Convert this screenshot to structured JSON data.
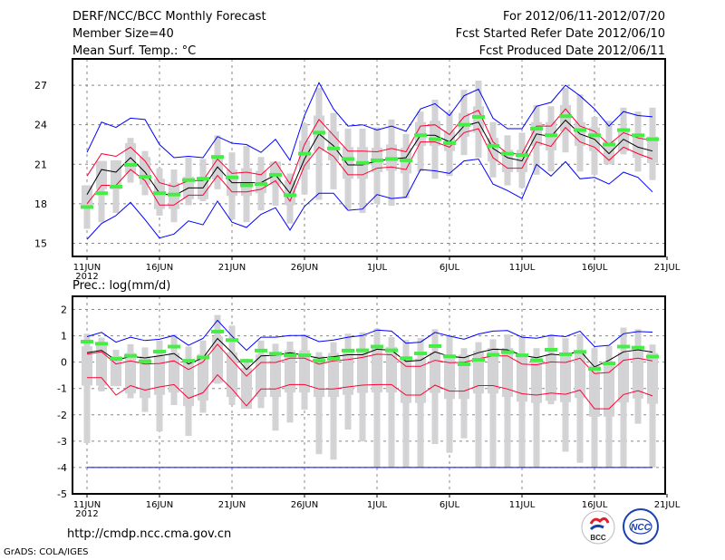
{
  "header": {
    "title": "DERF/NCC/BCC Monthly Forecast",
    "member_size": "Member Size=40",
    "variable": "Mean Surf. Temp.: °C",
    "period": "For 2012/06/11-2012/07/20",
    "started": "Fcst Started Refer Date 2012/06/10",
    "produced": "Fcst Produced Date 2012/06/11"
  },
  "footer": {
    "url": "http://cmdp.ncc.cma.gov.cn",
    "credit": "GrADS: COLA/IGES",
    "logo_bcc": "BCC",
    "logo_ncc": "NCC"
  },
  "colors": {
    "max_min": "#0000ff",
    "spread": "#ff0033",
    "mean": "#000000",
    "obs": "#44ee44",
    "range": "#d3d3d6"
  },
  "chart_data": [
    {
      "type": "line",
      "title": "Mean Surf. Temp.: °C",
      "xlabel": "",
      "ylabel": "°C",
      "x_ticks": [
        "11JUN",
        "16JUN",
        "21JUN",
        "26JUN",
        "1JUL",
        "6JUL",
        "11JUL",
        "16JUL",
        "21JUL"
      ],
      "x_year": "2012",
      "y_ticks": [
        15,
        18,
        21,
        24,
        27
      ],
      "ylim": [
        14,
        29
      ],
      "grid": true,
      "days": 40,
      "series": [
        {
          "name": "max",
          "color": "#0000ff",
          "values": [
            21.9,
            24.2,
            23.8,
            24.5,
            24.4,
            22.5,
            21.5,
            21.6,
            21.5,
            23.1,
            22.6,
            22.5,
            21.9,
            22.9,
            21.3,
            24.7,
            27.2,
            25.2,
            23.9,
            24.0,
            23.6,
            23.9,
            23.5,
            25.2,
            25.6,
            24.7,
            26.2,
            26.7,
            24.5,
            23.7,
            23.7,
            25.4,
            25.7,
            27.0,
            26.2,
            25.2,
            23.9,
            25.0,
            24.7,
            24.6
          ]
        },
        {
          "name": "upper",
          "color": "#ff0033",
          "values": [
            20.1,
            21.8,
            21.6,
            22.3,
            21.25,
            19.6,
            19.3,
            19.75,
            19.75,
            21.4,
            20.3,
            20.4,
            20.2,
            21.2,
            19.5,
            22.5,
            24.4,
            23.2,
            22.0,
            22.0,
            21.95,
            22.2,
            21.95,
            23.9,
            24.0,
            23.25,
            24.6,
            25.1,
            22.7,
            21.8,
            21.8,
            23.9,
            23.9,
            25.2,
            23.9,
            23.5,
            22.5,
            23.4,
            23.0,
            22.8
          ]
        },
        {
          "name": "mean",
          "color": "#000000",
          "values": [
            18.7,
            20.6,
            20.4,
            21.5,
            20.4,
            18.8,
            18.6,
            19.2,
            19.2,
            20.8,
            19.6,
            19.6,
            19.6,
            20.2,
            18.8,
            21.4,
            23.3,
            22.4,
            20.95,
            20.95,
            21.25,
            21.4,
            21.5,
            23.2,
            23.2,
            22.7,
            23.9,
            24.2,
            22.2,
            21.5,
            21.25,
            23.3,
            23.1,
            24.35,
            23.3,
            22.9,
            21.8,
            22.9,
            22.3,
            22.0
          ]
        },
        {
          "name": "lower",
          "color": "#ff0033",
          "values": [
            18.0,
            19.4,
            19.4,
            20.6,
            19.75,
            17.9,
            17.9,
            18.65,
            18.65,
            20.15,
            18.9,
            18.9,
            19.1,
            19.75,
            18.2,
            20.9,
            22.3,
            21.6,
            20.2,
            20.2,
            20.7,
            20.8,
            20.6,
            22.7,
            22.7,
            22.3,
            23.4,
            23.7,
            21.5,
            20.7,
            20.7,
            22.7,
            22.35,
            23.8,
            22.7,
            22.3,
            21.3,
            22.3,
            21.8,
            21.4
          ]
        },
        {
          "name": "min",
          "color": "#0000ff",
          "values": [
            15.3,
            16.5,
            17.1,
            18.1,
            16.8,
            15.4,
            15.7,
            16.7,
            16.4,
            18.2,
            16.6,
            16.2,
            17.2,
            17.7,
            16.0,
            17.8,
            18.8,
            18.8,
            17.5,
            17.6,
            18.7,
            18.4,
            18.5,
            20.6,
            20.5,
            20.3,
            21.25,
            21.4,
            19.5,
            19.0,
            18.4,
            21.0,
            20.1,
            21.2,
            19.9,
            20.0,
            19.5,
            20.4,
            20.0,
            18.9
          ]
        }
      ],
      "markers": {
        "name": "green",
        "color": "#44ee44",
        "values": [
          17.75,
          18.8,
          19.3,
          20.95,
          20.05,
          18.8,
          18.7,
          19.8,
          19.9,
          21.55,
          20.0,
          19.4,
          19.5,
          20.2,
          18.65,
          21.8,
          23.4,
          22.2,
          21.4,
          21.1,
          21.3,
          21.4,
          21.3,
          23.2,
          22.9,
          22.6,
          24.0,
          24.6,
          22.4,
          21.8,
          21.7,
          23.7,
          23.2,
          24.65,
          23.6,
          23.2,
          22.5,
          23.6,
          23.2,
          22.9
        ]
      },
      "ranges": {
        "high": [
          19.4,
          21.25,
          21.3,
          23.0,
          22.0,
          20.7,
          20.6,
          21.5,
          21.4,
          23.2,
          21.9,
          22.4,
          21.55,
          21.2,
          20.3,
          24.1,
          26.8,
          24.9,
          23.7,
          23.7,
          23.8,
          24.4,
          23.3,
          25.0,
          25.9,
          25.0,
          26.65,
          27.35,
          24.2,
          23.2,
          23.4,
          25.5,
          25.4,
          26.8,
          26.3,
          24.6,
          24.3,
          25.3,
          25.0,
          25.3
        ],
        "low": [
          16.1,
          16.6,
          17.3,
          19.6,
          18.65,
          17.1,
          16.6,
          17.9,
          18.2,
          19.1,
          16.8,
          16.6,
          17.5,
          17.85,
          16.5,
          18.7,
          18.3,
          19.1,
          17.6,
          17.3,
          18.0,
          17.85,
          18.4,
          20.45,
          19.9,
          20.1,
          21.7,
          21.5,
          20.0,
          19.4,
          19.2,
          20.2,
          20.45,
          21.9,
          20.45,
          20.2,
          21.0,
          21.75,
          20.45,
          19.8
        ]
      }
    },
    {
      "type": "line",
      "title": "Prec.: log(mm/d)",
      "xlabel": "",
      "ylabel": "log(mm/d)",
      "x_ticks": [
        "11JUN",
        "16JUN",
        "21JUN",
        "26JUN",
        "1JUL",
        "6JUL",
        "11JUL",
        "16JUL",
        "21JUL"
      ],
      "x_year": "2012",
      "y_ticks": [
        2,
        1,
        0,
        -1,
        -2,
        -3,
        -4,
        -5
      ],
      "ylim": [
        -5,
        2.5
      ],
      "grid": true,
      "days": 40,
      "series": [
        {
          "name": "max",
          "color": "#0000ff",
          "values": [
            0.97,
            1.13,
            0.76,
            0.95,
            0.82,
            0.87,
            1.01,
            0.64,
            0.9,
            1.59,
            0.99,
            0.45,
            0.95,
            0.95,
            1.01,
            1.01,
            0.78,
            0.84,
            0.95,
            1.01,
            1.22,
            1.18,
            0.72,
            0.76,
            1.13,
            0.99,
            0.87,
            1.07,
            1.18,
            1.2,
            0.95,
            0.91,
            1.02,
            0.97,
            1.18,
            0.59,
            0.64,
            1.08,
            1.16,
            1.14
          ]
        },
        {
          "name": "upper",
          "color": "#ff0033",
          "values": [
            0.3,
            0.39,
            -0.07,
            0.05,
            -0.07,
            -0.05,
            0.05,
            -0.28,
            0.01,
            0.68,
            0.07,
            -0.53,
            -0.01,
            -0.01,
            0.15,
            0.15,
            -0.08,
            0.05,
            0.1,
            0.18,
            0.3,
            0.28,
            -0.16,
            -0.16,
            0.07,
            -0.02,
            -0.01,
            0.13,
            0.24,
            0.24,
            -0.07,
            -0.1,
            0.01,
            -0.01,
            0.15,
            -0.43,
            -0.39,
            0.07,
            0.15,
            0.05
          ]
        },
        {
          "name": "mean",
          "color": "#000000",
          "values": [
            0.36,
            0.45,
            0.07,
            0.22,
            0.16,
            0.24,
            0.33,
            -0.07,
            0.16,
            0.9,
            0.36,
            -0.28,
            0.24,
            0.26,
            0.36,
            0.26,
            0.15,
            0.21,
            0.28,
            0.28,
            0.49,
            0.45,
            0.03,
            0.07,
            0.39,
            0.22,
            0.17,
            0.36,
            0.49,
            0.47,
            0.26,
            0.17,
            0.3,
            0.26,
            0.44,
            -0.18,
            0.07,
            0.39,
            0.47,
            0.38
          ]
        },
        {
          "name": "lower",
          "color": "#ff0033",
          "values": [
            -0.59,
            -0.59,
            -1.25,
            -0.89,
            -1.06,
            -0.94,
            -0.85,
            -1.37,
            -1.16,
            -0.48,
            -1.02,
            -1.66,
            -1.02,
            -1.02,
            -0.85,
            -0.85,
            -1.02,
            -1.02,
            -0.94,
            -0.87,
            -0.85,
            -0.85,
            -1.25,
            -1.25,
            -0.87,
            -1.1,
            -1.1,
            -0.89,
            -0.89,
            -1.02,
            -1.2,
            -1.25,
            -1.17,
            -1.22,
            -1.06,
            -1.77,
            -1.77,
            -1.23,
            -1.08,
            -1.28
          ]
        },
        {
          "name": "min",
          "color": "#0000ff",
          "values": [
            -4,
            -4,
            -4,
            -4,
            -4,
            -4,
            -4,
            -4,
            -4,
            -4,
            -4,
            -4,
            -4,
            -4,
            -4,
            -4,
            -4,
            -4,
            -4,
            -4,
            -4,
            -4,
            -4,
            -4,
            -4,
            -4,
            -4,
            -4,
            -4,
            -4,
            -4,
            -4,
            -4,
            -4,
            -4,
            -4,
            -4,
            -4,
            -4,
            -4
          ]
        }
      ],
      "markers": {
        "name": "green",
        "color": "#44ee44",
        "values": [
          0.78,
          0.7,
          0.13,
          0.24,
          0.03,
          0.4,
          0.59,
          0.05,
          0.18,
          1.16,
          0.84,
          0.05,
          0.44,
          0.32,
          0.26,
          0.26,
          0.05,
          0.13,
          0.44,
          0.45,
          0.59,
          0.45,
          0.15,
          0.33,
          0.61,
          0.22,
          -0.08,
          0.09,
          0.28,
          0.38,
          0.26,
          0.07,
          0.47,
          0.3,
          0.39,
          -0.25,
          -0.05,
          0.59,
          0.55,
          0.21
        ]
      },
      "ranges": {
        "high": [
          1.08,
          0.93,
          0.47,
          0.68,
          0.56,
          0.82,
          1.05,
          0.59,
          0.82,
          1.79,
          1.39,
          0.13,
          0.82,
          0.7,
          0.78,
          1.05,
          0.38,
          0.76,
          1.08,
          1.13,
          1.28,
          0.95,
          0.84,
          0.91,
          1.25,
          1.02,
          0.53,
          0.76,
          0.87,
          1.05,
          0.95,
          0.53,
          1.05,
          0.91,
          1.07,
          0.53,
          0.61,
          1.31,
          1.25,
          0.67
        ],
        "low": [
          -3.07,
          -1.11,
          -0.91,
          -1.37,
          -1.89,
          -2.63,
          -1.63,
          -2.8,
          -1.92,
          -0.82,
          -1.63,
          -1.77,
          -1.74,
          -2.6,
          -2.29,
          -1.8,
          -3.49,
          -3.7,
          -2.56,
          -3.01,
          -4,
          -4,
          -4,
          -4,
          -3.11,
          -3.44,
          -2.89,
          -4,
          -4,
          -4,
          -4,
          -4,
          -1.6,
          -3.4,
          -3.82,
          -4,
          -4,
          -4,
          -2.34,
          -4
        ]
      }
    }
  ]
}
